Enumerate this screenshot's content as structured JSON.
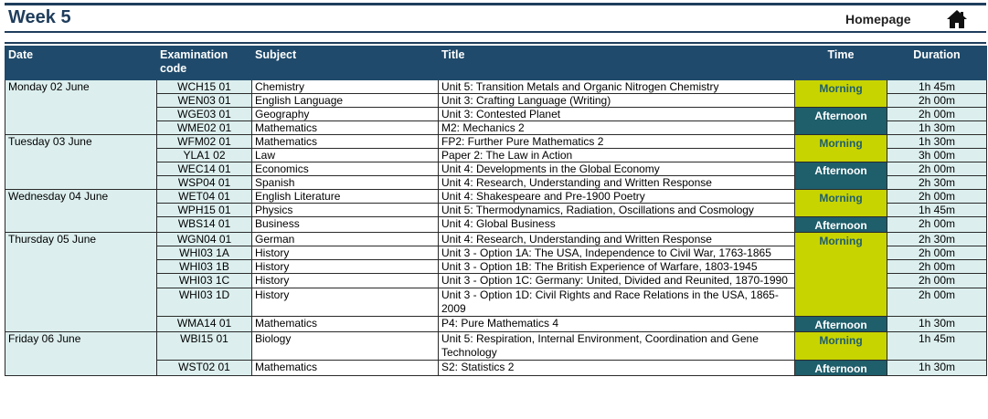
{
  "page": {
    "title": "Week 5",
    "homepage_label": "Homepage",
    "home_icon": "home-icon"
  },
  "colors": {
    "header_bg": "#1f4a6b",
    "morning": "#c8d400",
    "afternoon": "#1f5e6b",
    "light_cell": "#dcefee"
  },
  "columns": {
    "date": "Date",
    "code": "Examination code",
    "subject": "Subject",
    "title": "Title",
    "time": "Time",
    "duration": "Duration"
  },
  "days": [
    {
      "date": "Monday 02 June",
      "rows": [
        {
          "code": "WCH15 01",
          "subject": "Chemistry",
          "title": "Unit 5: Transition Metals and Organic Nitrogen Chemistry",
          "duration": "1h 45m"
        },
        {
          "code": "WEN03 01",
          "subject": "English Language",
          "title": "Unit 3: Crafting Language (Writing)",
          "duration": "2h 00m"
        },
        {
          "code": "WGE03 01",
          "subject": "Geography",
          "title": "Unit 3: Contested Planet",
          "duration": "2h 00m"
        },
        {
          "code": "WME02 01",
          "subject": "Mathematics",
          "title": "M2: Mechanics 2",
          "duration": "1h 30m"
        }
      ],
      "times": [
        {
          "label": "Morning"
        },
        {
          "label": "Afternoon"
        }
      ]
    },
    {
      "date": "Tuesday 03 June",
      "rows": [
        {
          "code": "WFM02 01",
          "subject": "Mathematics",
          "title": "FP2: Further Pure Mathematics 2",
          "duration": "1h 30m"
        },
        {
          "code": "YLA1 02",
          "subject": "Law",
          "title": "Paper 2: The Law in Action",
          "duration": "3h 00m"
        },
        {
          "code": "WEC14 01",
          "subject": "Economics",
          "title": "Unit 4: Developments in the Global Economy",
          "duration": "2h 00m"
        },
        {
          "code": "WSP04 01",
          "subject": "Spanish",
          "title": "Unit 4: Research, Understanding and Written Response",
          "duration": "2h 30m"
        }
      ],
      "times": [
        {
          "label": "Morning"
        },
        {
          "label": "Afternoon"
        }
      ]
    },
    {
      "date": "Wednesday 04 June",
      "rows": [
        {
          "code": "WET04 01",
          "subject": "English Literature",
          "title": "Unit 4: Shakespeare and Pre-1900 Poetry",
          "duration": "2h 00m"
        },
        {
          "code": "WPH15 01",
          "subject": "Physics",
          "title": "Unit 5: Thermodynamics, Radiation, Oscillations and Cosmology",
          "duration": "1h 45m"
        },
        {
          "code": "WBS14 01",
          "subject": "Business",
          "title": "Unit 4: Global Business",
          "duration": "2h 00m"
        }
      ],
      "times": [
        {
          "label": "Morning"
        },
        {
          "label": "Afternoon"
        }
      ]
    },
    {
      "date": "Thursday 05 June",
      "rows": [
        {
          "code": "WGN04 01",
          "subject": "German",
          "title": "Unit 4: Research, Understanding and Written Response",
          "duration": "2h 30m"
        },
        {
          "code": "WHI03 1A",
          "subject": "History",
          "title": "Unit 3 - Option 1A: The USA, Independence to Civil War, 1763-1865",
          "duration": "2h 00m"
        },
        {
          "code": "WHI03 1B",
          "subject": "History",
          "title": "Unit 3 - Option 1B: The British Experience of Warfare, 1803-1945",
          "duration": "2h 00m"
        },
        {
          "code": "WHI03 1C",
          "subject": "History",
          "title": "Unit 3 - Option 1C: Germany: United, Divided and Reunited, 1870-1990",
          "duration": "2h 00m"
        },
        {
          "code": "WHI03 1D",
          "subject": "History",
          "title": "Unit 3 - Option 1D: Civil Rights and Race Relations in the USA, 1865-2009",
          "duration": "2h 00m"
        },
        {
          "code": "WMA14 01",
          "subject": "Mathematics",
          "title": "P4: Pure Mathematics 4",
          "duration": "1h 30m"
        }
      ],
      "times": [
        {
          "label": "Morning"
        },
        {
          "label": "Afternoon"
        }
      ]
    },
    {
      "date": "Friday 06 June",
      "rows": [
        {
          "code": "WBI15 01",
          "subject": "Biology",
          "title": "Unit 5: Respiration, Internal Environment, Coordination and Gene Technology",
          "duration": "1h 45m"
        },
        {
          "code": "WST02 01",
          "subject": "Mathematics",
          "title": "S2: Statistics 2",
          "duration": "1h 30m"
        }
      ],
      "times": [
        {
          "label": "Morning"
        },
        {
          "label": "Afternoon"
        }
      ]
    }
  ]
}
